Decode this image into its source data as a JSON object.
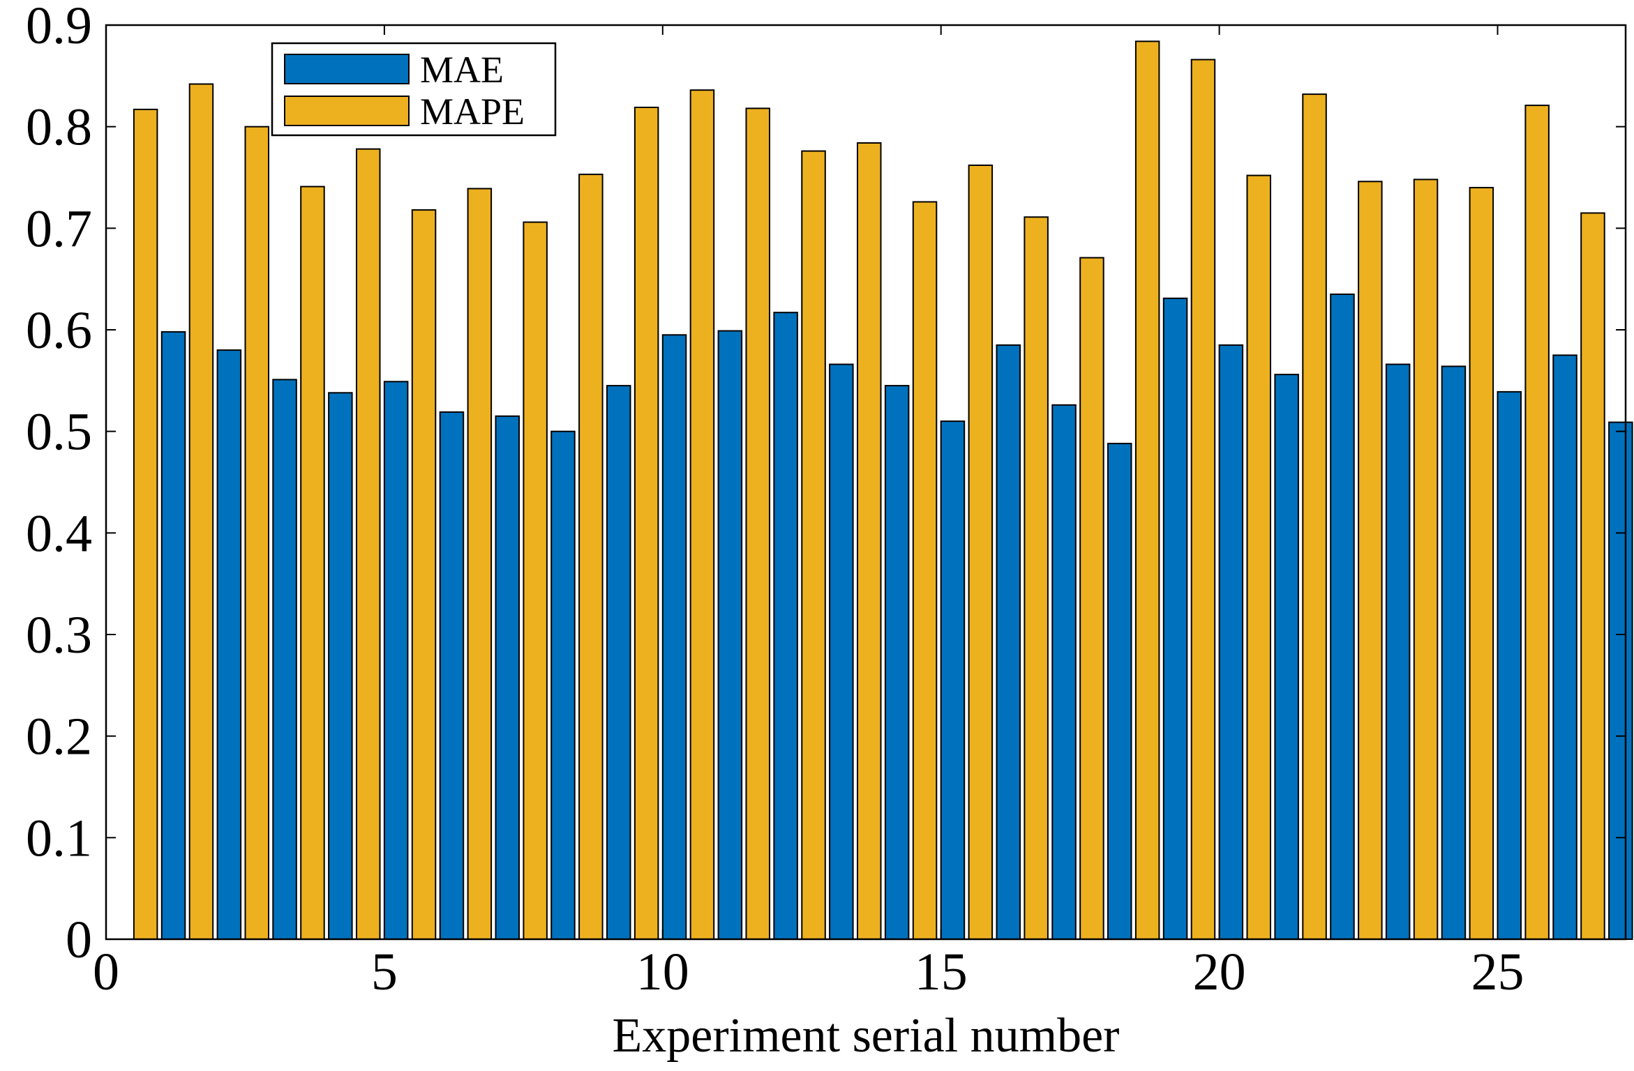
{
  "chart_data": {
    "type": "bar",
    "title": "",
    "xlabel": "Experiment serial number",
    "ylabel": "",
    "categories": [
      1,
      2,
      3,
      4,
      5,
      6,
      7,
      8,
      9,
      10,
      11,
      12,
      13,
      14,
      15,
      16,
      17,
      18,
      19,
      20,
      21,
      22,
      23,
      24,
      25,
      26,
      27
    ],
    "series": [
      {
        "name": "MAPE",
        "color": "#EDB120",
        "values": [
          0.817,
          0.842,
          0.8,
          0.741,
          0.778,
          0.718,
          0.739,
          0.706,
          0.753,
          0.819,
          0.836,
          0.818,
          0.776,
          0.784,
          0.726,
          0.762,
          0.711,
          0.671,
          0.884,
          0.866,
          0.752,
          0.832,
          0.746,
          0.748,
          0.74,
          0.821,
          0.715
        ]
      },
      {
        "name": "MAE",
        "color": "#0072BD",
        "values": [
          0.598,
          0.58,
          0.551,
          0.538,
          0.549,
          0.519,
          0.515,
          0.5,
          0.545,
          0.595,
          0.599,
          0.617,
          0.566,
          0.545,
          0.51,
          0.585,
          0.526,
          0.488,
          0.631,
          0.585,
          0.556,
          0.635,
          0.566,
          0.564,
          0.539,
          0.575,
          0.509
        ]
      }
    ],
    "xlim": [
      0,
      27.3
    ],
    "ylim": [
      0,
      0.9
    ],
    "xticks": [
      "0",
      "5",
      "10",
      "15",
      "20",
      "25"
    ],
    "yticks": [
      "0",
      "0.1",
      "0.2",
      "0.3",
      "0.4",
      "0.5",
      "0.6",
      "0.7",
      "0.8",
      "0.9"
    ],
    "grid": false,
    "legend": {
      "position": "top-left",
      "entries": [
        "MAE",
        "MAPE"
      ]
    }
  }
}
